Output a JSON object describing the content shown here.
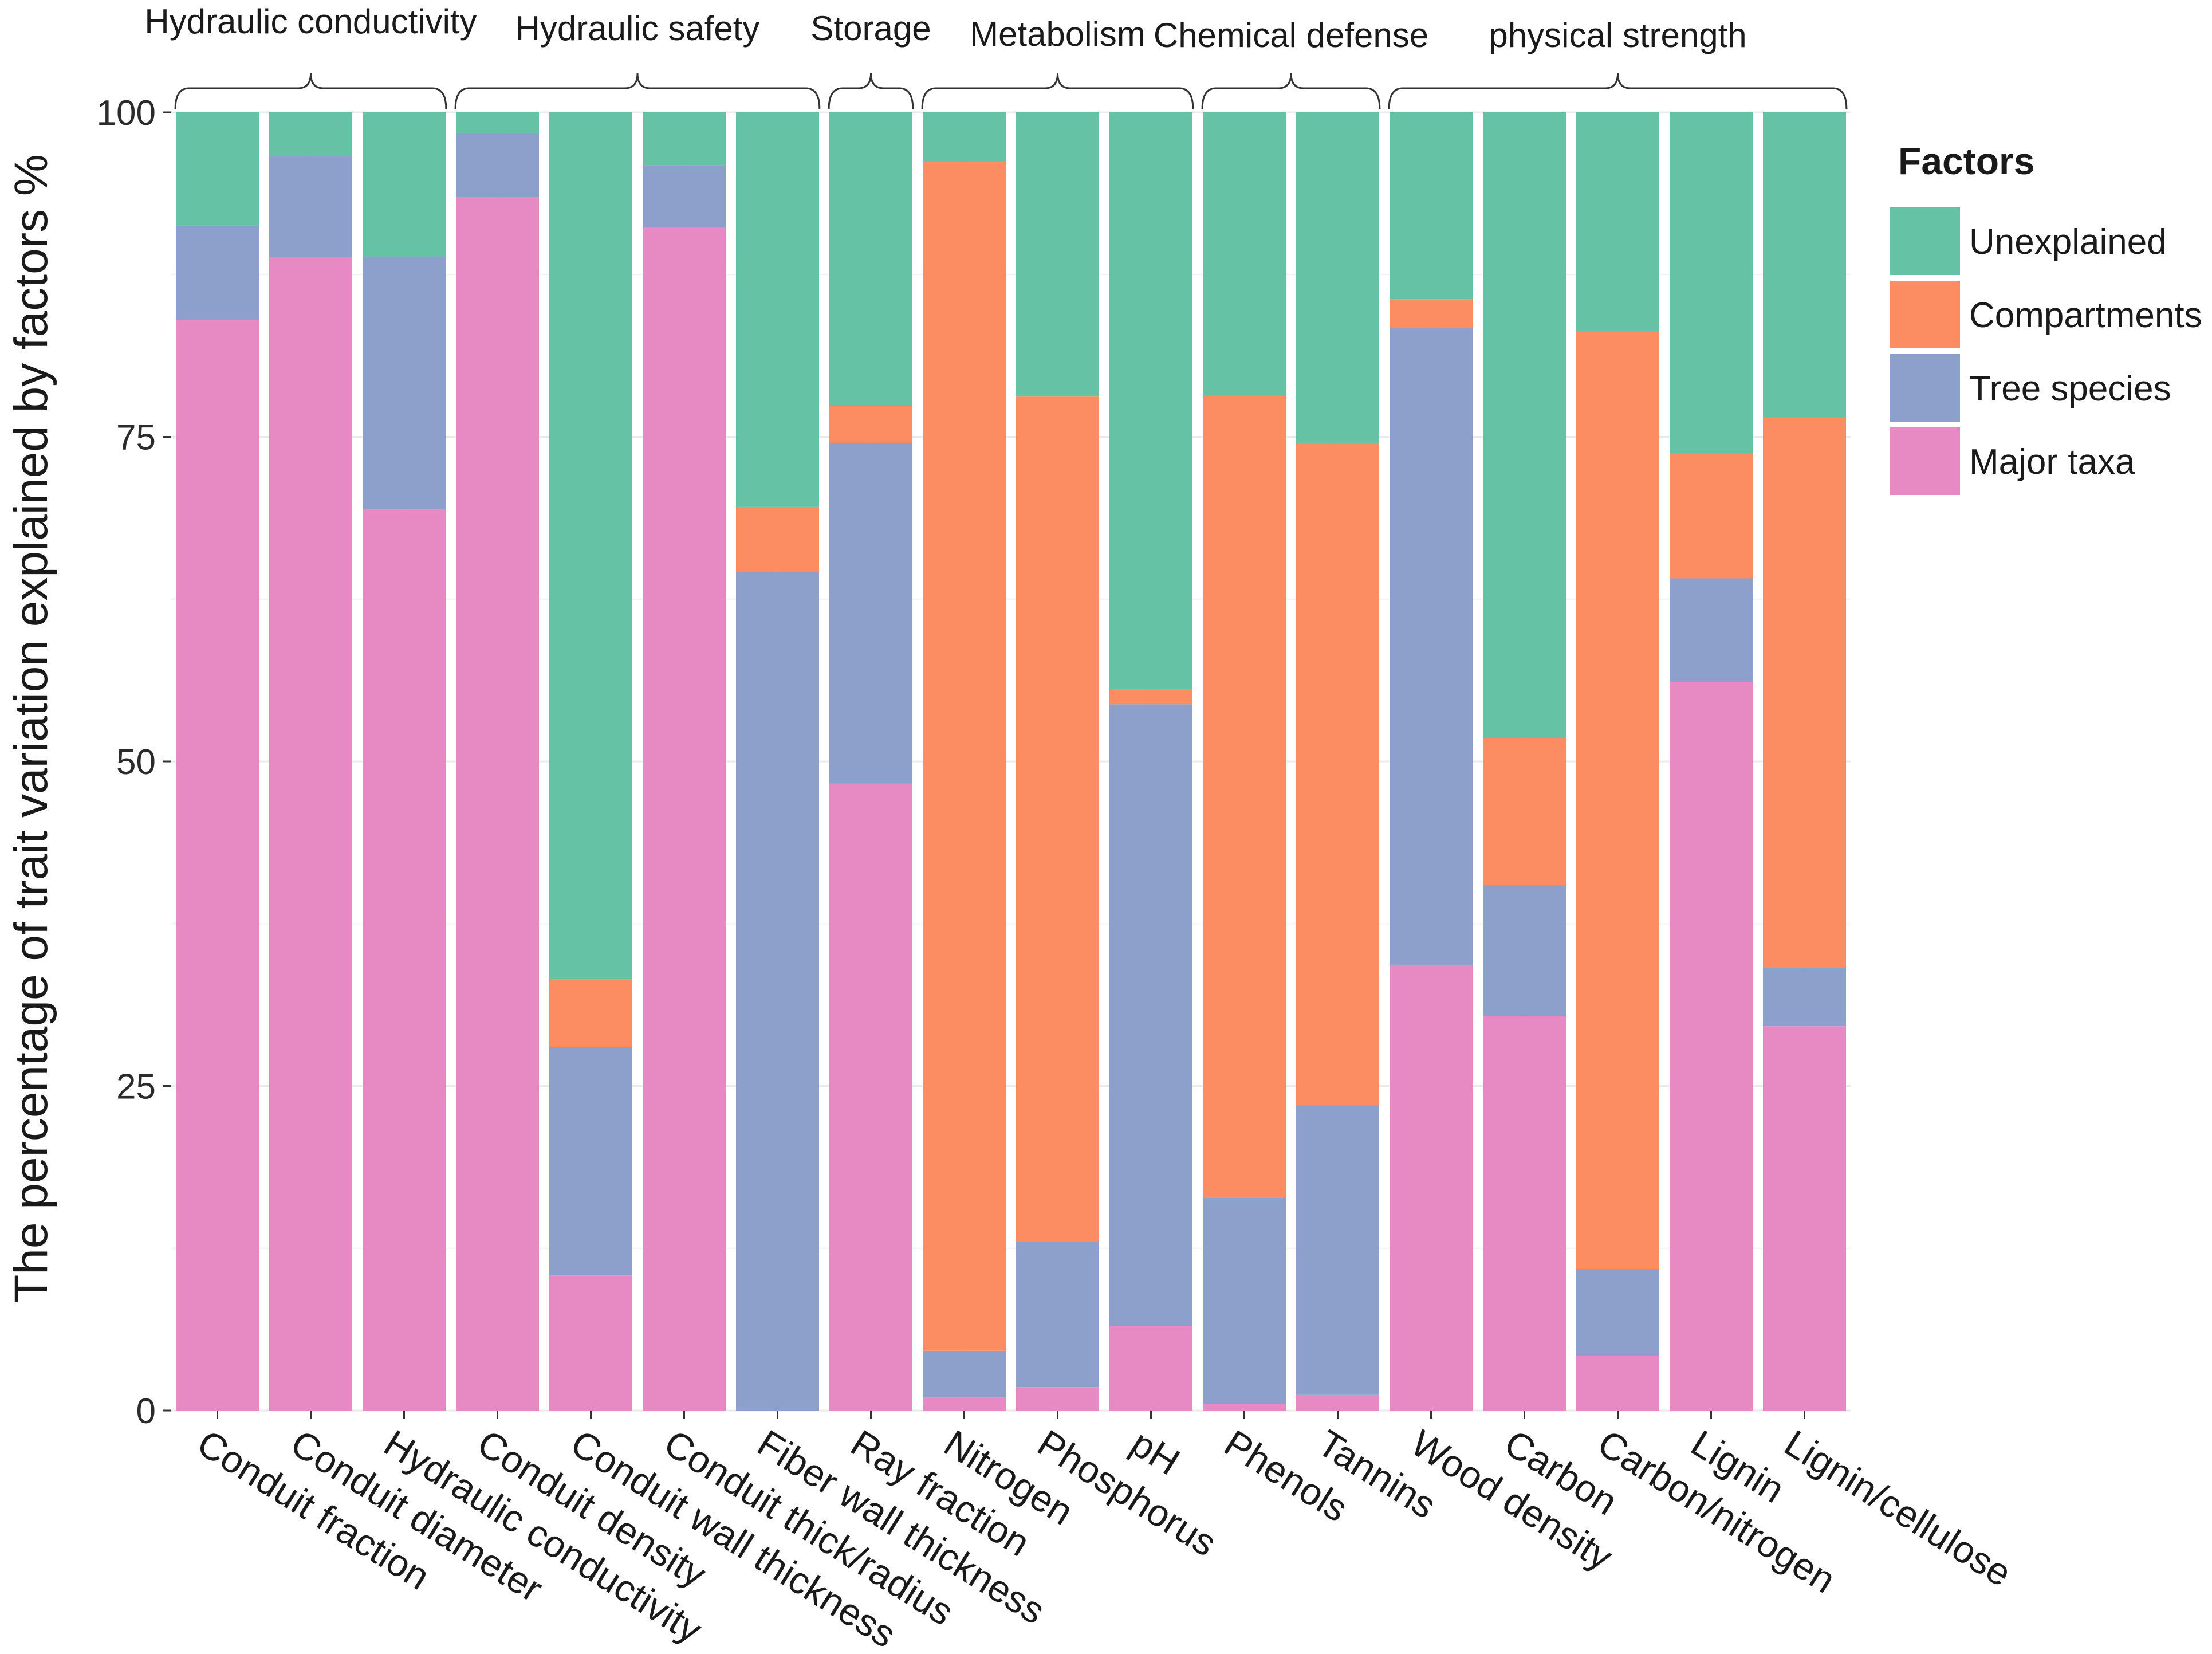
{
  "chart_data": {
    "type": "bar",
    "stacked": true,
    "ylabel": "The percentage of trait variation explained by factors %",
    "xlabel": "",
    "ylim": [
      0,
      100
    ],
    "yticks": [
      "0",
      "25",
      "50",
      "75",
      "100"
    ],
    "categories": [
      "Conduit fraction",
      "Conduit diameter",
      "Hydraulic conductivity",
      "Conduit density",
      "Conduit wall thickness",
      "Conduit thick/radius",
      "Fiber wall thickness",
      "Ray fraction",
      "Nitrogen",
      "Phosphorus",
      "pH",
      "Phenols",
      "Tannins",
      "Wood density",
      "Carbon",
      "Carbon/nitrogen",
      "Lignin",
      "Lignin/cellulose"
    ],
    "series": [
      {
        "name": "Major taxa",
        "color": "#E78AC3",
        "values": [
          84,
          88.8,
          69.4,
          93.5,
          10.4,
          91.1,
          0,
          48.3,
          1,
          1.8,
          6.5,
          0.5,
          1.2,
          34.3,
          30.4,
          4.2,
          56.1,
          29.6
        ]
      },
      {
        "name": "Tree species",
        "color": "#8DA0CB",
        "values": [
          7.3,
          7.8,
          19.5,
          4.9,
          17.6,
          4.8,
          64.6,
          26.2,
          3.6,
          11.2,
          47.9,
          15.9,
          22.3,
          49.1,
          10.1,
          6.7,
          8.0,
          4.5
        ]
      },
      {
        "name": "Compartments",
        "color": "#FC8D62",
        "values": [
          0,
          0,
          0,
          0,
          5.2,
          0,
          5.0,
          2.9,
          91.6,
          65.1,
          1.2,
          61.8,
          51.0,
          2.2,
          11.3,
          72.2,
          9.6,
          42.4
        ]
      },
      {
        "name": "Unexplained",
        "color": "#66C2A5",
        "values": [
          8.7,
          3.4,
          11.1,
          1.6,
          66.8,
          4.1,
          30.4,
          22.6,
          3.8,
          21.9,
          44.4,
          21.8,
          25.5,
          14.4,
          48.2,
          16.9,
          26.3,
          23.5
        ]
      }
    ],
    "groups": [
      {
        "label": "Hydraulic conductivity",
        "from": 0,
        "to": 2
      },
      {
        "label": "Hydraulic safety",
        "from": 3,
        "to": 6
      },
      {
        "label": "Storage",
        "from": 7,
        "to": 7
      },
      {
        "label": "Metabolism",
        "from": 8,
        "to": 10
      },
      {
        "label": "Chemical defense",
        "from": 11,
        "to": 12
      },
      {
        "label": "physical strength",
        "from": 13,
        "to": 17
      }
    ],
    "legend": {
      "title": "Factors",
      "position": "right",
      "entries": [
        "Unexplained",
        "Compartments",
        "Tree species",
        "Major taxa"
      ]
    },
    "grid": true
  }
}
